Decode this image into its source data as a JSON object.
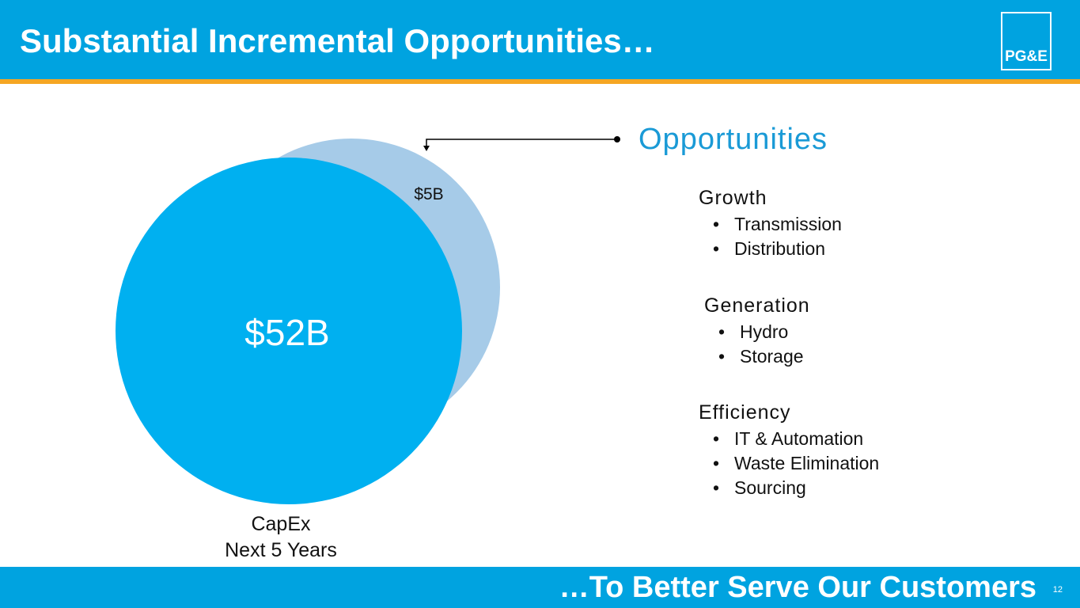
{
  "header": {
    "title": "Substantial Incremental Opportunities…",
    "logo": "PG&E"
  },
  "diagram": {
    "main_label": "$52B",
    "extra_label": "$5B",
    "caption": [
      "CapEx",
      "Next 5 Years"
    ]
  },
  "opportunities": {
    "title": "Opportunities",
    "groups": [
      {
        "name": "Growth",
        "items": [
          "Transmission",
          "Distribution"
        ]
      },
      {
        "name": "Generation",
        "items": [
          "Hydro",
          "Storage"
        ]
      },
      {
        "name": "Efficiency",
        "items": [
          "IT & Automation",
          "Waste Elimination",
          "Sourcing"
        ]
      }
    ]
  },
  "footer": {
    "tagline": "…To Better Serve Our Customers",
    "page": 12
  }
}
